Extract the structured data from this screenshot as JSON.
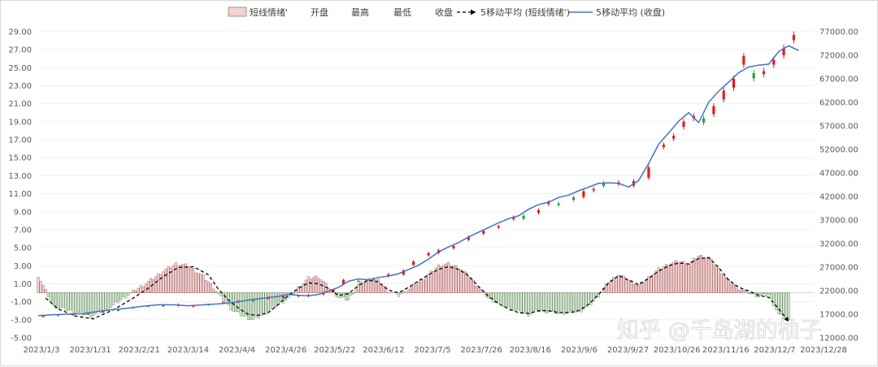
{
  "chart_data": {
    "type": "bar+candlestick+line",
    "legend": {
      "placement": "top",
      "entries": [
        "短线情绪'",
        "开盘",
        "最高",
        "最低",
        "收盘",
        "5移动平均 (短线情绪')",
        "5移动平均 (收盘)"
      ]
    },
    "left_axis": {
      "ticks": [
        "29.00",
        "27.00",
        "25.00",
        "23.00",
        "21.00",
        "19.00",
        "17.00",
        "15.00",
        "13.00",
        "11.00",
        "9.00",
        "7.00",
        "5.00",
        "3.00",
        "1.00",
        "-1.00",
        "-3.00",
        "-5.00"
      ],
      "range": [
        -5,
        29
      ]
    },
    "right_axis": {
      "ticks": [
        "77000.00",
        "72000.00",
        "67000.00",
        "62000.00",
        "57000.00",
        "52000.00",
        "47000.00",
        "42000.00",
        "37000.00",
        "32000.00",
        "27000.00",
        "22000.00",
        "17000.00",
        "12000.00"
      ],
      "range": [
        12000,
        77000
      ]
    },
    "x_tick_labels": [
      "2023/1/3",
      "2023/1/31",
      "2023/2/21",
      "2023/3/14",
      "2023/4/4",
      "2023/4/26",
      "2023/5/22",
      "2023/6/12",
      "2023/7/5",
      "2023/7/26",
      "2023/8/16",
      "2023/9/6",
      "2023/9/27",
      "2023/10/26",
      "2023/11/16",
      "2023/12/7",
      "2023/12/28"
    ],
    "sentiment_bars": [
      [
        0,
        1.9
      ],
      [
        6,
        -1.5
      ],
      [
        14,
        -2.1
      ],
      [
        21,
        -2.6
      ],
      [
        28,
        -1.8
      ],
      [
        35,
        -0.4
      ],
      [
        40,
        0.5
      ],
      [
        45,
        1.4
      ],
      [
        50,
        2.4
      ],
      [
        55,
        3.2
      ],
      [
        60,
        3.0
      ],
      [
        66,
        1.8
      ],
      [
        70,
        0.6
      ],
      [
        74,
        -0.9
      ],
      [
        78,
        -2.0
      ],
      [
        82,
        -2.6
      ],
      [
        86,
        -3.0
      ],
      [
        90,
        -2.4
      ],
      [
        95,
        -1.5
      ],
      [
        100,
        -0.6
      ],
      [
        104,
        0.6
      ],
      [
        108,
        1.6
      ],
      [
        112,
        1.8
      ],
      [
        116,
        0.6
      ],
      [
        120,
        -0.5
      ],
      [
        124,
        -0.8
      ],
      [
        128,
        0.9
      ],
      [
        132,
        1.5
      ],
      [
        136,
        1.3
      ],
      [
        140,
        0.2
      ],
      [
        144,
        -0.3
      ],
      [
        148,
        0.4
      ],
      [
        152,
        1.2
      ],
      [
        156,
        2.0
      ],
      [
        160,
        3.0
      ],
      [
        164,
        3.2
      ],
      [
        168,
        2.8
      ],
      [
        172,
        1.9
      ],
      [
        176,
        0.6
      ],
      [
        180,
        -0.6
      ],
      [
        184,
        -1.2
      ],
      [
        188,
        -1.7
      ],
      [
        192,
        -2.1
      ],
      [
        196,
        -2.4
      ],
      [
        200,
        -2.0
      ],
      [
        204,
        -2.1
      ],
      [
        208,
        -2.3
      ],
      [
        212,
        -2.2
      ],
      [
        216,
        -2.1
      ],
      [
        220,
        -1.5
      ],
      [
        224,
        -0.3
      ],
      [
        228,
        1.2
      ],
      [
        232,
        2.0
      ],
      [
        236,
        1.4
      ],
      [
        240,
        0.8
      ],
      [
        244,
        1.7
      ],
      [
        248,
        2.6
      ],
      [
        252,
        3.2
      ],
      [
        256,
        3.5
      ],
      [
        260,
        3.2
      ],
      [
        264,
        4.1
      ],
      [
        268,
        3.9
      ],
      [
        272,
        2.6
      ],
      [
        276,
        1.3
      ],
      [
        280,
        0.5
      ],
      [
        284,
        0.0
      ],
      [
        288,
        -0.4
      ],
      [
        292,
        -0.2
      ],
      [
        296,
        -2.4
      ],
      [
        300,
        -3.1
      ]
    ],
    "sentiment_ma5": [
      [
        3,
        -0.6
      ],
      [
        8,
        -1.8
      ],
      [
        15,
        -2.6
      ],
      [
        22,
        -2.9
      ],
      [
        30,
        -1.9
      ],
      [
        38,
        -0.6
      ],
      [
        44,
        0.5
      ],
      [
        50,
        1.8
      ],
      [
        56,
        2.8
      ],
      [
        62,
        2.9
      ],
      [
        68,
        2.0
      ],
      [
        72,
        0.4
      ],
      [
        76,
        -0.8
      ],
      [
        80,
        -1.7
      ],
      [
        84,
        -2.4
      ],
      [
        88,
        -2.5
      ],
      [
        92,
        -2.2
      ],
      [
        96,
        -1.3
      ],
      [
        100,
        -0.3
      ],
      [
        104,
        0.5
      ],
      [
        108,
        1.1
      ],
      [
        112,
        1.0
      ],
      [
        116,
        0.5
      ],
      [
        120,
        -0.3
      ],
      [
        124,
        -0.1
      ],
      [
        128,
        0.8
      ],
      [
        132,
        1.4
      ],
      [
        136,
        1.2
      ],
      [
        140,
        0.3
      ],
      [
        144,
        0.0
      ],
      [
        148,
        0.6
      ],
      [
        152,
        1.3
      ],
      [
        156,
        2.0
      ],
      [
        160,
        2.6
      ],
      [
        164,
        2.9
      ],
      [
        168,
        2.6
      ],
      [
        172,
        1.9
      ],
      [
        176,
        0.7
      ],
      [
        180,
        -0.4
      ],
      [
        184,
        -1.2
      ],
      [
        188,
        -1.8
      ],
      [
        192,
        -2.2
      ],
      [
        196,
        -2.3
      ],
      [
        200,
        -2.0
      ],
      [
        204,
        -2.0
      ],
      [
        208,
        -2.2
      ],
      [
        212,
        -2.2
      ],
      [
        216,
        -2.0
      ],
      [
        220,
        -1.3
      ],
      [
        224,
        -0.2
      ],
      [
        228,
        1.1
      ],
      [
        232,
        1.9
      ],
      [
        236,
        1.4
      ],
      [
        240,
        0.9
      ],
      [
        244,
        1.6
      ],
      [
        248,
        2.4
      ],
      [
        252,
        3.0
      ],
      [
        256,
        3.3
      ],
      [
        260,
        3.2
      ],
      [
        264,
        3.8
      ],
      [
        268,
        3.9
      ],
      [
        272,
        2.8
      ],
      [
        276,
        1.4
      ],
      [
        280,
        0.6
      ],
      [
        284,
        0.2
      ],
      [
        288,
        -0.3
      ],
      [
        292,
        -0.5
      ],
      [
        296,
        -1.8
      ],
      [
        300,
        -3.2
      ]
    ],
    "close_ma5": [
      [
        0,
        16700
      ],
      [
        6,
        16900
      ],
      [
        12,
        17000
      ],
      [
        18,
        17100
      ],
      [
        24,
        17600
      ],
      [
        30,
        18000
      ],
      [
        36,
        18300
      ],
      [
        42,
        18700
      ],
      [
        48,
        19000
      ],
      [
        54,
        19000
      ],
      [
        60,
        18800
      ],
      [
        66,
        19000
      ],
      [
        72,
        19200
      ],
      [
        78,
        19500
      ],
      [
        84,
        20000
      ],
      [
        90,
        20400
      ],
      [
        96,
        20800
      ],
      [
        100,
        21200
      ],
      [
        104,
        21000
      ],
      [
        108,
        20900
      ],
      [
        112,
        21200
      ],
      [
        116,
        21900
      ],
      [
        120,
        22700
      ],
      [
        124,
        24000
      ],
      [
        128,
        24500
      ],
      [
        132,
        24300
      ],
      [
        136,
        24800
      ],
      [
        140,
        25100
      ],
      [
        144,
        25600
      ],
      [
        148,
        26500
      ],
      [
        152,
        27400
      ],
      [
        156,
        28700
      ],
      [
        160,
        30200
      ],
      [
        164,
        31300
      ],
      [
        168,
        32200
      ],
      [
        172,
        33400
      ],
      [
        176,
        34400
      ],
      [
        180,
        35400
      ],
      [
        184,
        36400
      ],
      [
        188,
        37300
      ],
      [
        192,
        37900
      ],
      [
        196,
        39300
      ],
      [
        200,
        40300
      ],
      [
        204,
        40800
      ],
      [
        208,
        41800
      ],
      [
        212,
        42300
      ],
      [
        216,
        43200
      ],
      [
        220,
        44000
      ],
      [
        224,
        44800
      ],
      [
        228,
        44900
      ],
      [
        232,
        44800
      ],
      [
        236,
        44000
      ],
      [
        240,
        45400
      ],
      [
        244,
        49000
      ],
      [
        248,
        53100
      ],
      [
        252,
        55500
      ],
      [
        256,
        58000
      ],
      [
        260,
        59800
      ],
      [
        264,
        57700
      ],
      [
        268,
        62000
      ],
      [
        272,
        64400
      ],
      [
        276,
        66300
      ],
      [
        280,
        68300
      ],
      [
        284,
        69500
      ],
      [
        288,
        69900
      ],
      [
        292,
        70100
      ],
      [
        296,
        72800
      ],
      [
        300,
        74000
      ],
      [
        304,
        73000
      ]
    ],
    "candles": [
      [
        2,
        16500,
        16650
      ],
      [
        8,
        16750,
        16900
      ],
      [
        14,
        16850,
        17000
      ],
      [
        20,
        17050,
        17250
      ],
      [
        26,
        17400,
        17600
      ],
      [
        32,
        17900,
        17750
      ],
      [
        38,
        18300,
        18500
      ],
      [
        44,
        18800,
        18650
      ],
      [
        50,
        18700,
        18900
      ],
      [
        56,
        18800,
        19100
      ],
      [
        62,
        18650,
        18800
      ],
      [
        68,
        19100,
        18950
      ],
      [
        74,
        19300,
        19500
      ],
      [
        80,
        19600,
        19800
      ],
      [
        86,
        20000,
        19800
      ],
      [
        92,
        20300,
        20600
      ],
      [
        98,
        20500,
        20800
      ],
      [
        104,
        20800,
        21000
      ],
      [
        108,
        20800,
        21100
      ],
      [
        114,
        21200,
        21500
      ],
      [
        118,
        21800,
        22200
      ],
      [
        122,
        23400,
        24300
      ],
      [
        128,
        24100,
        23900
      ],
      [
        134,
        24600,
        24300
      ],
      [
        140,
        25100,
        25500
      ],
      [
        146,
        25400,
        26300
      ],
      [
        150,
        27500,
        28200
      ],
      [
        156,
        29500,
        30000
      ],
      [
        160,
        30000,
        30600
      ],
      [
        166,
        31000,
        31500
      ],
      [
        172,
        32800,
        33400
      ],
      [
        178,
        34100,
        34700
      ],
      [
        184,
        35400,
        35700
      ],
      [
        190,
        37200,
        37600
      ],
      [
        194,
        37900,
        37300
      ],
      [
        200,
        38500,
        39100
      ],
      [
        204,
        40400,
        40800
      ],
      [
        208,
        40500,
        40200
      ],
      [
        214,
        41800,
        41300
      ],
      [
        218,
        41900,
        43100
      ],
      [
        222,
        43300,
        43600
      ],
      [
        226,
        44900,
        44300
      ],
      [
        232,
        44600,
        45000
      ],
      [
        238,
        44300,
        45300
      ],
      [
        244,
        46000,
        48200
      ],
      [
        250,
        52500,
        53000
      ],
      [
        254,
        54300,
        54900
      ],
      [
        258,
        56800,
        57900
      ],
      [
        262,
        58600,
        59100
      ],
      [
        266,
        58600,
        57700
      ],
      [
        270,
        59500,
        61200
      ],
      [
        274,
        62600,
        64500
      ],
      [
        278,
        65100,
        67000
      ],
      [
        282,
        70000,
        71800
      ],
      [
        286,
        68200,
        67100
      ],
      [
        290,
        68000,
        68600
      ],
      [
        294,
        70000,
        71000
      ],
      [
        298,
        72000,
        73500
      ],
      [
        302,
        75200,
        76300
      ]
    ]
  },
  "watermark": "知乎 @千岛湖的柚子"
}
